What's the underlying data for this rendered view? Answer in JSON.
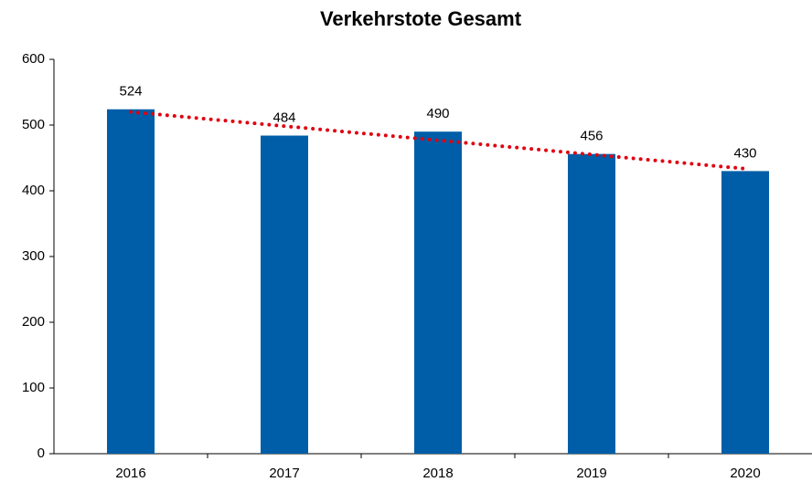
{
  "chart_data": {
    "type": "bar",
    "title": "Verkehrstote Gesamt",
    "categories": [
      "2016",
      "2017",
      "2018",
      "2019",
      "2020"
    ],
    "values": [
      524,
      484,
      490,
      456,
      430
    ],
    "color": "#005ea8",
    "ylim": [
      0,
      600
    ],
    "yticks": [
      0,
      100,
      200,
      300,
      400,
      500,
      600
    ],
    "grid": false,
    "trendline": {
      "kind": "linear",
      "color": "#e00010",
      "style": "dotted"
    }
  }
}
